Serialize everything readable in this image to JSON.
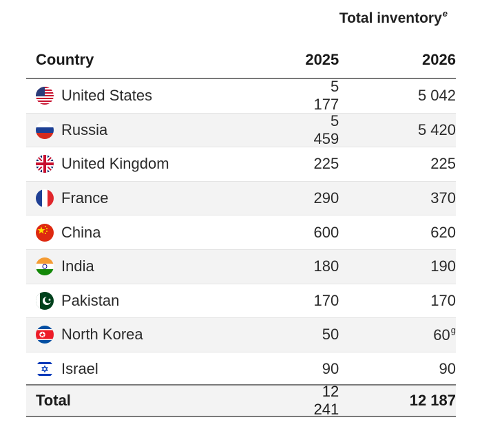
{
  "table": {
    "group_header": "Total inventory",
    "group_header_note": "e",
    "columns": [
      "Country",
      "2025",
      "2026"
    ],
    "rows": [
      {
        "country": "United States",
        "flag": "us-flag-icon",
        "v2025": "5 177",
        "v2026": "5 042",
        "note2026": ""
      },
      {
        "country": "Russia",
        "flag": "russia-flag-icon",
        "v2025": "5 459",
        "v2026": "5 420",
        "note2026": ""
      },
      {
        "country": "United Kingdom",
        "flag": "uk-flag-icon",
        "v2025": "225",
        "v2026": "225",
        "note2026": ""
      },
      {
        "country": "France",
        "flag": "france-flag-icon",
        "v2025": "290",
        "v2026": "370",
        "note2026": ""
      },
      {
        "country": "China",
        "flag": "china-flag-icon",
        "v2025": "600",
        "v2026": "620",
        "note2026": ""
      },
      {
        "country": "India",
        "flag": "india-flag-icon",
        "v2025": "180",
        "v2026": "190",
        "note2026": ""
      },
      {
        "country": "Pakistan",
        "flag": "pakistan-flag-icon",
        "v2025": "170",
        "v2026": "170",
        "note2026": ""
      },
      {
        "country": "North Korea",
        "flag": "north-korea-flag-icon",
        "v2025": "50",
        "v2026": "60",
        "note2026": "g"
      },
      {
        "country": "Israel",
        "flag": "israel-flag-icon",
        "v2025": "90",
        "v2026": "90",
        "note2026": ""
      }
    ],
    "total": {
      "label": "Total",
      "v2025": "12 241",
      "v2026": "12 187"
    }
  }
}
